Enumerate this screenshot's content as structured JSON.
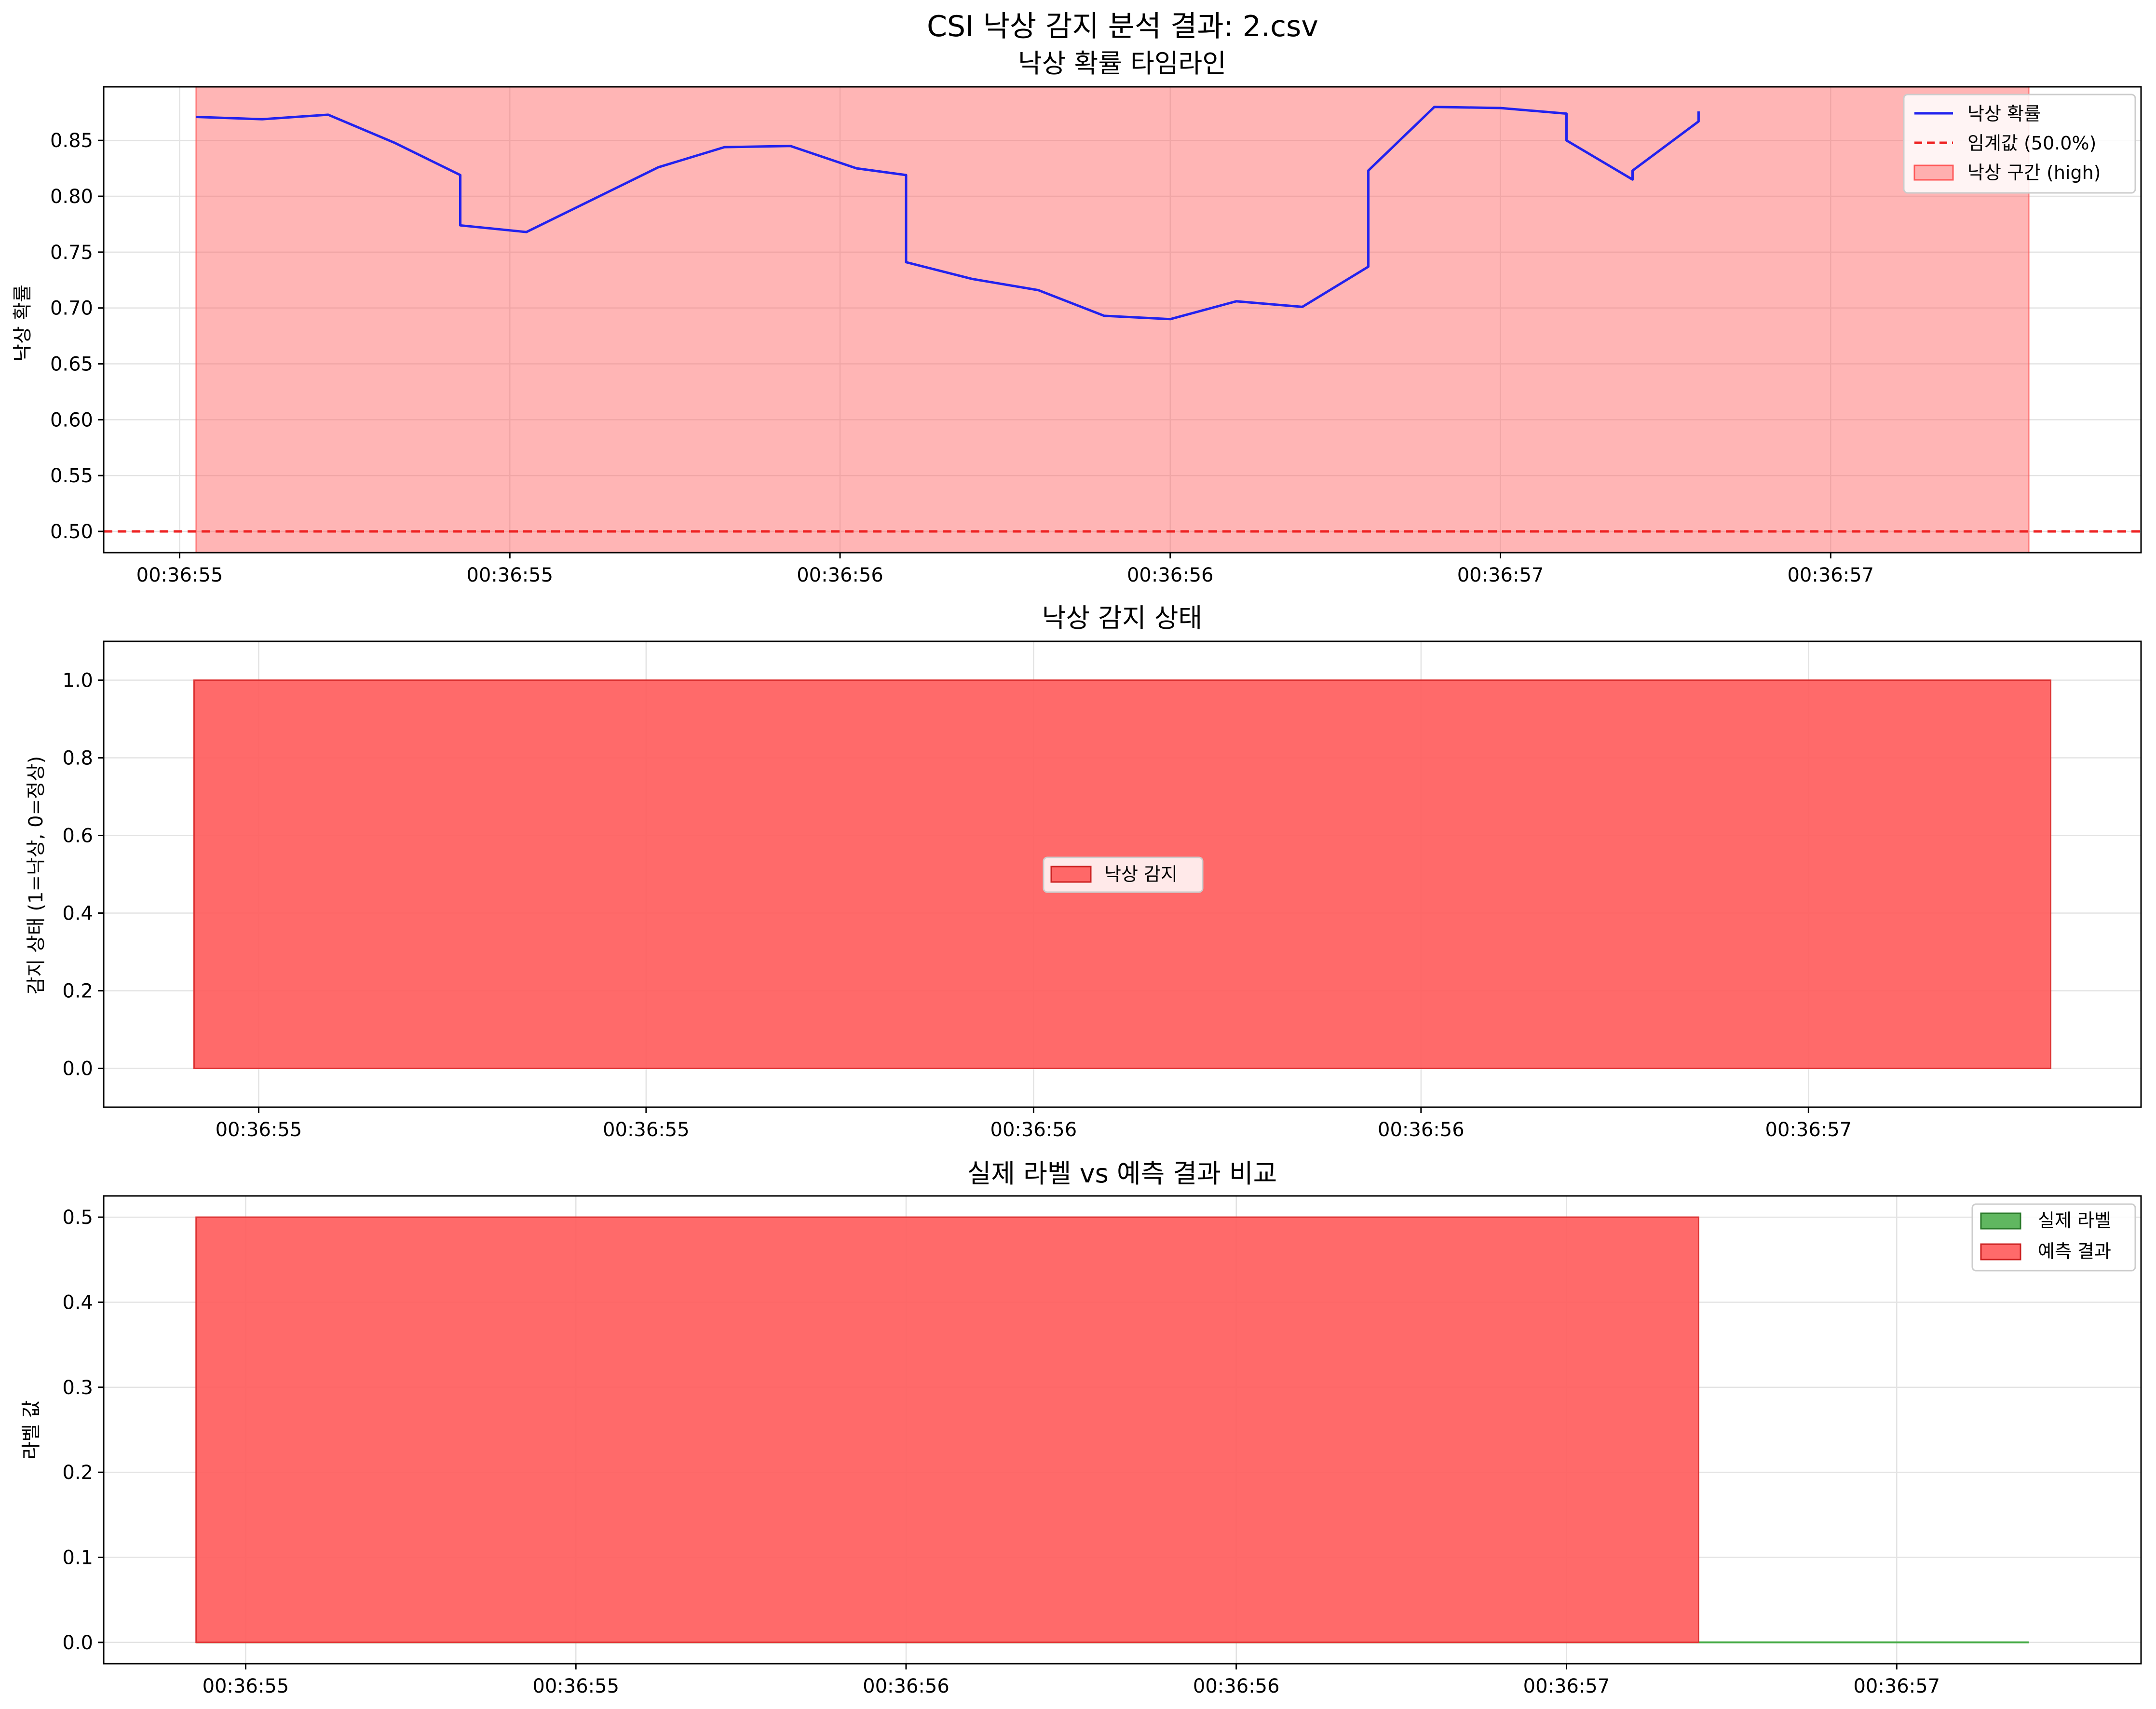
{
  "figure": {
    "suptitle": "CSI 낙상 감지 분석 결과: 2.csv"
  },
  "colors": {
    "probability_line": "#2222ee",
    "threshold": "#ee2222",
    "fall_region": "#ff5a5a",
    "true_label": "#44aa44",
    "prediction": "#ff5a5a"
  },
  "chart_data": [
    {
      "type": "line",
      "title": "낙상 확률 타임라인",
      "xlabel": "",
      "ylabel": "낙상 확률",
      "x_unit": "seconds (axis shows time of day)",
      "xlim": [
        -0.115,
        2.97
      ],
      "ylim": [
        0.481,
        0.898
      ],
      "xticks": [
        0,
        0.5,
        1.0,
        1.5,
        2.0,
        2.5
      ],
      "xtick_labels": [
        "00:36:55",
        "00:36:55",
        "00:36:56",
        "00:36:56",
        "00:36:57",
        "00:36:57"
      ],
      "yticks": [
        0.5,
        0.55,
        0.6,
        0.65,
        0.7,
        0.75,
        0.8,
        0.85
      ],
      "ytick_labels": [
        "0.50",
        "0.55",
        "0.60",
        "0.65",
        "0.70",
        "0.75",
        "0.80",
        "0.85"
      ],
      "grid": true,
      "legend_position": "top-right",
      "legend": [
        "낙상 확률",
        "임계값 (50.0%)",
        "낙상 구간 (high)"
      ],
      "series": [
        {
          "name": "낙상 확률",
          "style": "line",
          "x": [
            0.025,
            0.125,
            0.225,
            0.325,
            0.425,
            0.425,
            0.525,
            0.625,
            0.725,
            0.825,
            0.925,
            1.025,
            1.1,
            1.1,
            1.2,
            1.3,
            1.4,
            1.5,
            1.6,
            1.7,
            1.8,
            1.8,
            1.9,
            2.0,
            2.1,
            2.1,
            2.2,
            2.2,
            2.3,
            2.3
          ],
          "y": [
            0.871,
            0.869,
            0.873,
            0.848,
            0.819,
            0.774,
            0.768,
            0.797,
            0.826,
            0.844,
            0.845,
            0.825,
            0.819,
            0.741,
            0.726,
            0.716,
            0.693,
            0.69,
            0.706,
            0.701,
            0.737,
            0.823,
            0.88,
            0.879,
            0.874,
            0.85,
            0.815,
            0.823,
            0.867,
            0.876
          ]
        },
        {
          "name": "임계값 (50.0%)",
          "style": "dashed-hline",
          "y": 0.5
        },
        {
          "name": "낙상 구간 (high)",
          "style": "span",
          "x0": 0.025,
          "x1": 2.8
        }
      ]
    },
    {
      "type": "area",
      "title": "낙상 감지 상태",
      "xlabel": "",
      "ylabel": "감지 상태 (1=낙상, 0=정상)",
      "xlim": [
        -0.115,
        3.04
      ],
      "ylim": [
        -0.1,
        1.1
      ],
      "xticks": [
        0.125,
        0.725,
        1.325,
        1.925,
        2.525
      ],
      "xtick_labels": [
        "00:36:55",
        "00:36:55",
        "00:36:56",
        "00:36:56",
        "00:36:57"
      ],
      "yticks": [
        0.0,
        0.2,
        0.4,
        0.6,
        0.8,
        1.0
      ],
      "ytick_labels": [
        "0.0",
        "0.2",
        "0.4",
        "0.6",
        "0.8",
        "1.0"
      ],
      "grid": true,
      "legend_position": "center",
      "legend": [
        "낙상 감지"
      ],
      "series": [
        {
          "name": "낙상 감지",
          "x0": 0.025,
          "x1": 2.9,
          "value": 1.0
        }
      ]
    },
    {
      "type": "area",
      "title": "실제 라벨 vs 예측 결과 비교",
      "xlabel": "",
      "ylabel": "라벨 값",
      "xlim": [
        -0.115,
        2.97
      ],
      "ylim": [
        -0.025,
        0.525
      ],
      "xticks": [
        0.1,
        0.6,
        1.1,
        1.6,
        2.1,
        2.6
      ],
      "xtick_labels": [
        "00:36:55",
        "00:36:55",
        "00:36:56",
        "00:36:56",
        "00:36:57",
        "00:36:57"
      ],
      "yticks": [
        0.0,
        0.1,
        0.2,
        0.3,
        0.4,
        0.5
      ],
      "ytick_labels": [
        "0.0",
        "0.1",
        "0.2",
        "0.3",
        "0.4",
        "0.5"
      ],
      "grid": true,
      "legend_position": "top-right",
      "legend": [
        "실제 라벨",
        "예측 결과"
      ],
      "series": [
        {
          "name": "실제 라벨",
          "x0": 0.025,
          "x1": 2.8,
          "value": 0.0
        },
        {
          "name": "예측 결과",
          "x0": 0.025,
          "x1": 2.3,
          "value": 0.5
        }
      ]
    }
  ]
}
